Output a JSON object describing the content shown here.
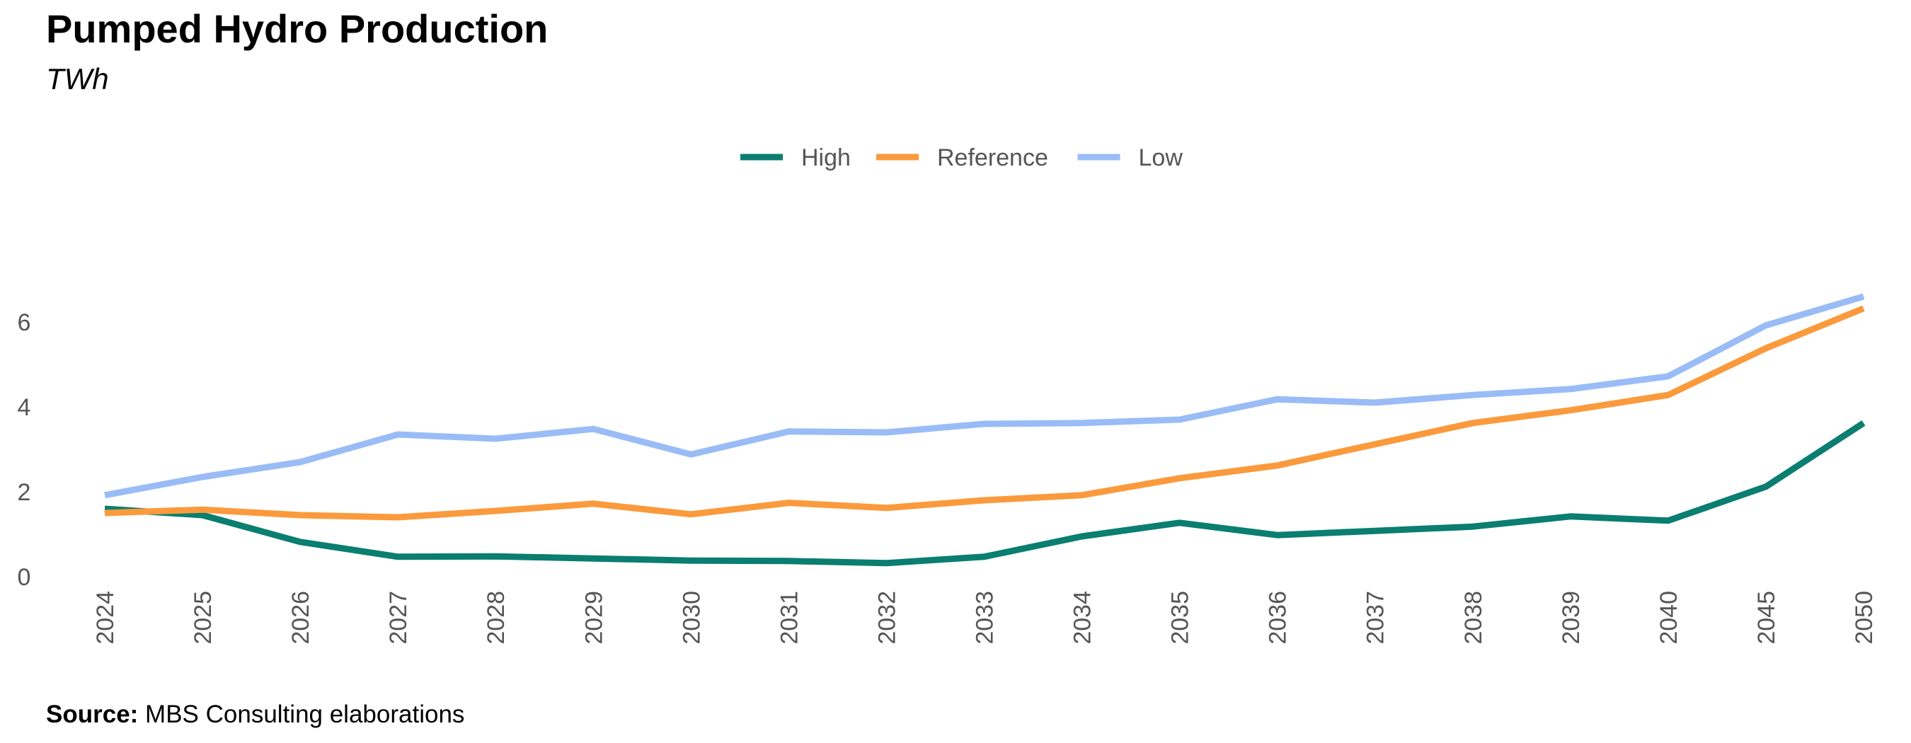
{
  "title": "Pumped Hydro Production",
  "subtitle": "TWh",
  "source": {
    "label": "Source:",
    "text": "MBS Consulting elaborations"
  },
  "chart_data": {
    "type": "line",
    "title": "Pumped Hydro Production",
    "ylabel": "TWh",
    "xlabel": "",
    "categories": [
      "2024",
      "2025",
      "2026",
      "2027",
      "2028",
      "2029",
      "2030",
      "2031",
      "2032",
      "2033",
      "2034",
      "2035",
      "2036",
      "2037",
      "2038",
      "2039",
      "2040",
      "2045",
      "2050"
    ],
    "ylim": [
      0,
      7
    ],
    "yticks": [
      0,
      2,
      4,
      6
    ],
    "legend_position": "top-center",
    "grid": false,
    "series": [
      {
        "name": "High",
        "color": "#0a7e70",
        "values": [
          1.6,
          1.45,
          0.82,
          0.47,
          0.48,
          0.43,
          0.38,
          0.37,
          0.32,
          0.47,
          0.95,
          1.27,
          0.98,
          1.08,
          1.18,
          1.42,
          1.32,
          2.12,
          3.62
        ]
      },
      {
        "name": "Reference",
        "color": "#fb9a3c",
        "values": [
          1.5,
          1.58,
          1.45,
          1.4,
          1.55,
          1.72,
          1.47,
          1.74,
          1.62,
          1.8,
          1.92,
          2.32,
          2.62,
          3.12,
          3.62,
          3.92,
          4.28,
          5.38,
          6.32
        ]
      },
      {
        "name": "Low",
        "color": "#9abcf6",
        "values": [
          1.92,
          2.35,
          2.7,
          3.35,
          3.25,
          3.48,
          2.88,
          3.42,
          3.4,
          3.6,
          3.62,
          3.7,
          4.18,
          4.1,
          4.28,
          4.42,
          4.72,
          5.92,
          6.6
        ]
      }
    ]
  }
}
